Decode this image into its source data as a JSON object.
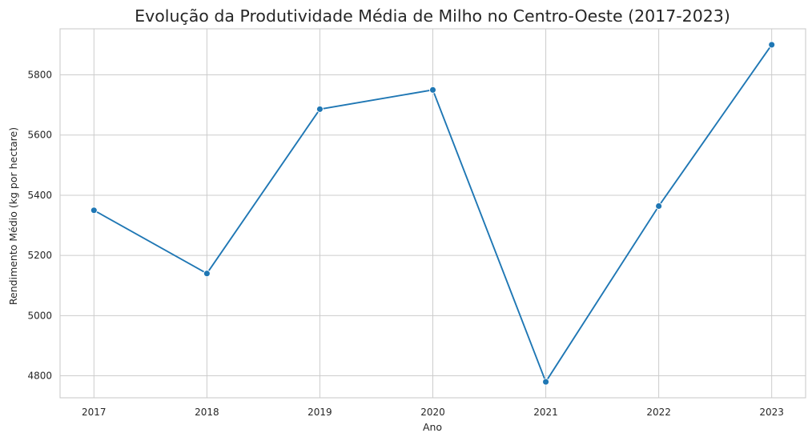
{
  "chart_data": {
    "type": "line",
    "title": "Evolução da Produtividade Média de Milho no Centro-Oeste (2017-2023)",
    "xlabel": "Ano",
    "ylabel": "Rendimento Médio (kg por hectare)",
    "x": [
      2017,
      2018,
      2019,
      2020,
      2021,
      2022,
      2023
    ],
    "x_ticks": [
      "2017",
      "2018",
      "2019",
      "2020",
      "2021",
      "2022",
      "2023"
    ],
    "y_ticks": [
      "4800",
      "5000",
      "5200",
      "5400",
      "5600",
      "5800"
    ],
    "series": [
      {
        "values": [
          5350,
          5140,
          5686,
          5750,
          4780,
          5364,
          5900
        ],
        "color": "#1f77b4",
        "marker": "circle"
      }
    ],
    "xlim": [
      2016.7,
      2023.3
    ],
    "ylim": [
      4727,
      5953
    ],
    "grid": true,
    "legend": "none"
  }
}
